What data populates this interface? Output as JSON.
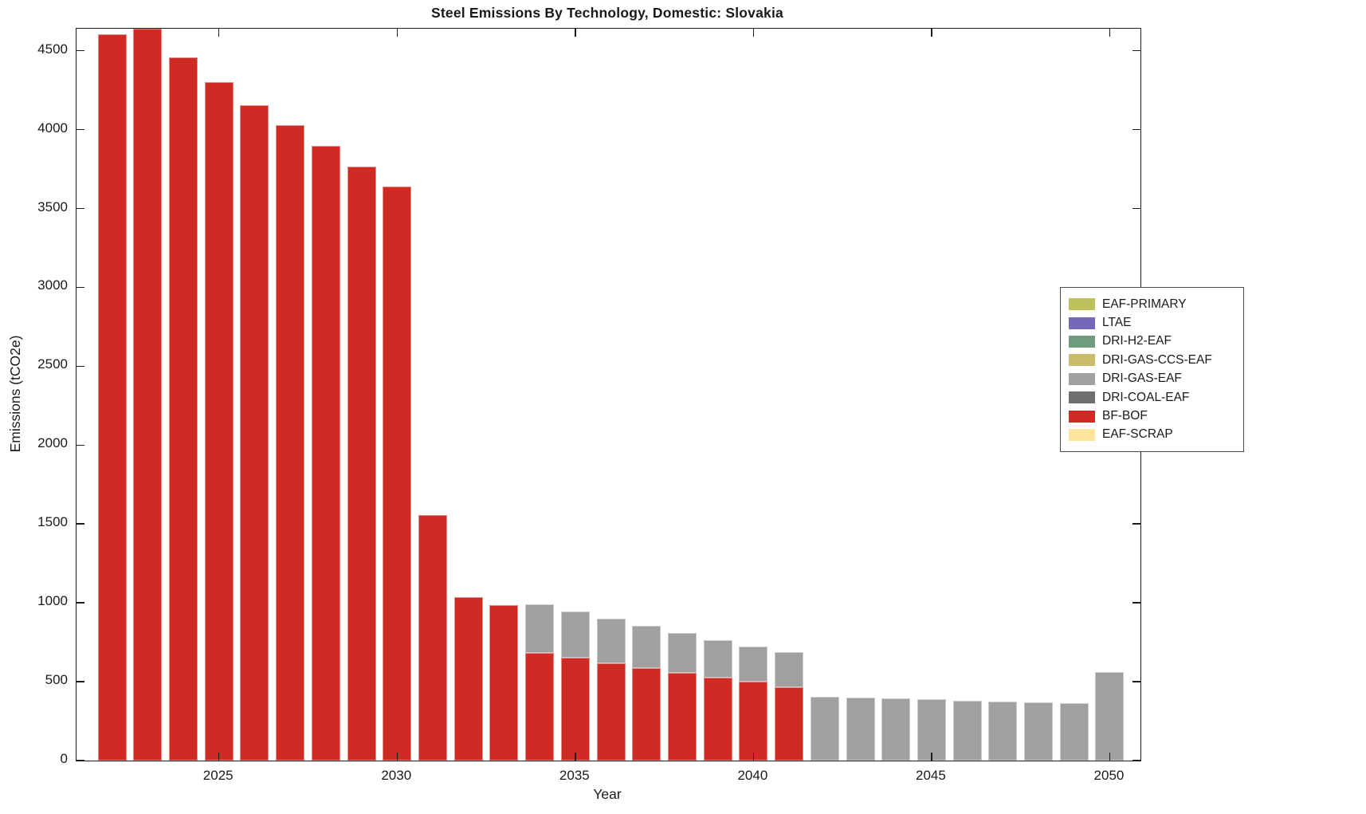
{
  "figure": {
    "title": "Steel Emissions By Technology, Domestic: Slovakia",
    "xlabel": "Year",
    "ylabel": "Emissions (tCO2e)"
  },
  "chart_data": {
    "type": "bar",
    "stacked": true,
    "title": "Steel Emissions By Technology, Domestic: Slovakia",
    "xlabel": "Year",
    "ylabel": "Emissions (tCO2e)",
    "grid": false,
    "legend_position": "right",
    "ylim": [
      0,
      4640
    ],
    "yticks": [
      0,
      500,
      1000,
      1500,
      2000,
      2500,
      3000,
      3500,
      4000,
      4500
    ],
    "xticks": [
      2025,
      2030,
      2035,
      2040,
      2045,
      2050
    ],
    "categories": [
      2022,
      2023,
      2024,
      2025,
      2026,
      2027,
      2028,
      2029,
      2030,
      2031,
      2032,
      2033,
      2034,
      2035,
      2036,
      2037,
      2038,
      2039,
      2040,
      2041,
      2042,
      2043,
      2044,
      2045,
      2046,
      2047,
      2048,
      2049,
      2050
    ],
    "stack_order_bottom_to_top": [
      "BF-BOF",
      "DRI-GAS-EAF"
    ],
    "series": [
      {
        "name": "EAF-PRIMARY",
        "color": "#bdc25c",
        "values": [
          0,
          0,
          0,
          0,
          0,
          0,
          0,
          0,
          0,
          0,
          0,
          0,
          0,
          0,
          0,
          0,
          0,
          0,
          0,
          0,
          0,
          0,
          0,
          0,
          0,
          0,
          0,
          0,
          0
        ]
      },
      {
        "name": "LTAE",
        "color": "#7668b8",
        "values": [
          0,
          0,
          0,
          0,
          0,
          0,
          0,
          0,
          0,
          0,
          0,
          0,
          0,
          0,
          0,
          0,
          0,
          0,
          0,
          0,
          0,
          0,
          0,
          0,
          0,
          0,
          0,
          0,
          0
        ]
      },
      {
        "name": "DRI-H2-EAF",
        "color": "#6f9e7e",
        "values": [
          0,
          0,
          0,
          0,
          0,
          0,
          0,
          0,
          0,
          0,
          0,
          0,
          0,
          0,
          0,
          0,
          0,
          0,
          0,
          0,
          0,
          0,
          0,
          0,
          0,
          0,
          0,
          0,
          0
        ]
      },
      {
        "name": "DRI-GAS-CCS-EAF",
        "color": "#c9bd6b",
        "values": [
          0,
          0,
          0,
          0,
          0,
          0,
          0,
          0,
          0,
          0,
          0,
          0,
          0,
          0,
          0,
          0,
          0,
          0,
          0,
          0,
          0,
          0,
          0,
          0,
          0,
          0,
          0,
          0,
          0
        ]
      },
      {
        "name": "DRI-GAS-EAF",
        "color": "#a1a09e",
        "values": [
          0,
          0,
          0,
          0,
          0,
          0,
          0,
          0,
          0,
          0,
          0,
          0,
          309,
          293,
          282,
          266,
          253,
          239,
          227,
          220,
          405,
          399,
          393,
          387,
          381,
          375,
          370,
          365,
          560
        ]
      },
      {
        "name": "DRI-COAL-EAF",
        "color": "#6f6f6f",
        "values": [
          0,
          0,
          0,
          0,
          0,
          0,
          0,
          0,
          0,
          0,
          0,
          0,
          0,
          0,
          0,
          0,
          0,
          0,
          0,
          0,
          0,
          0,
          0,
          0,
          0,
          0,
          0,
          0,
          0
        ]
      },
      {
        "name": "BF-BOF",
        "color": "#cf2b24",
        "values": [
          4605,
          4640,
          4460,
          4300,
          4155,
          4030,
          3895,
          3765,
          3640,
          1555,
          1034,
          988,
          683,
          651,
          617,
          587,
          556,
          526,
          498,
          465,
          0,
          0,
          0,
          0,
          0,
          0,
          0,
          0,
          0
        ]
      },
      {
        "name": "EAF-SCRAP",
        "color": "#fce49f",
        "values": [
          0,
          0,
          0,
          0,
          0,
          0,
          0,
          0,
          0,
          0,
          0,
          0,
          0,
          0,
          0,
          0,
          0,
          0,
          0,
          0,
          0,
          0,
          0,
          0,
          0,
          0,
          0,
          0,
          0
        ]
      }
    ]
  }
}
